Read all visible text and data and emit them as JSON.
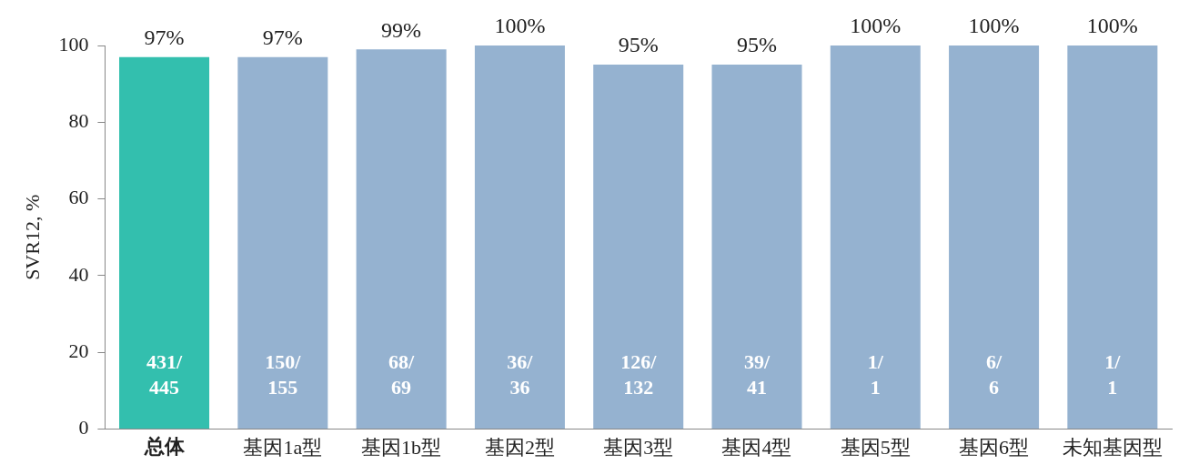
{
  "chart_data": {
    "type": "bar",
    "ylabel": "SVR12, %",
    "categories": [
      "总体",
      "基因1a型",
      "基因1b型",
      "基因2型",
      "基因3型",
      "基因4型",
      "基因5型",
      "基因6型",
      "未知基因型"
    ],
    "values": [
      97,
      97,
      99,
      100,
      95,
      95,
      100,
      100,
      100
    ],
    "colors": [
      "#33bfae",
      "#95b2d0",
      "#95b2d0",
      "#95b2d0",
      "#95b2d0",
      "#95b2d0",
      "#95b2d0",
      "#95b2d0",
      "#95b2d0"
    ],
    "value_labels": [
      "97%",
      "97%",
      "99%",
      "100%",
      "95%",
      "95%",
      "100%",
      "100%",
      "100%"
    ],
    "ylim": [
      0,
      100
    ],
    "yticks": [
      0,
      20,
      40,
      60,
      80,
      100
    ],
    "grid": false,
    "legend": false,
    "annotations": [
      "431/\n445",
      "150/\n155",
      "68/\n69",
      "36/\n36",
      "126/\n132",
      "39/\n41",
      "1/\n1",
      "6/\n6",
      "1/\n1"
    ]
  }
}
